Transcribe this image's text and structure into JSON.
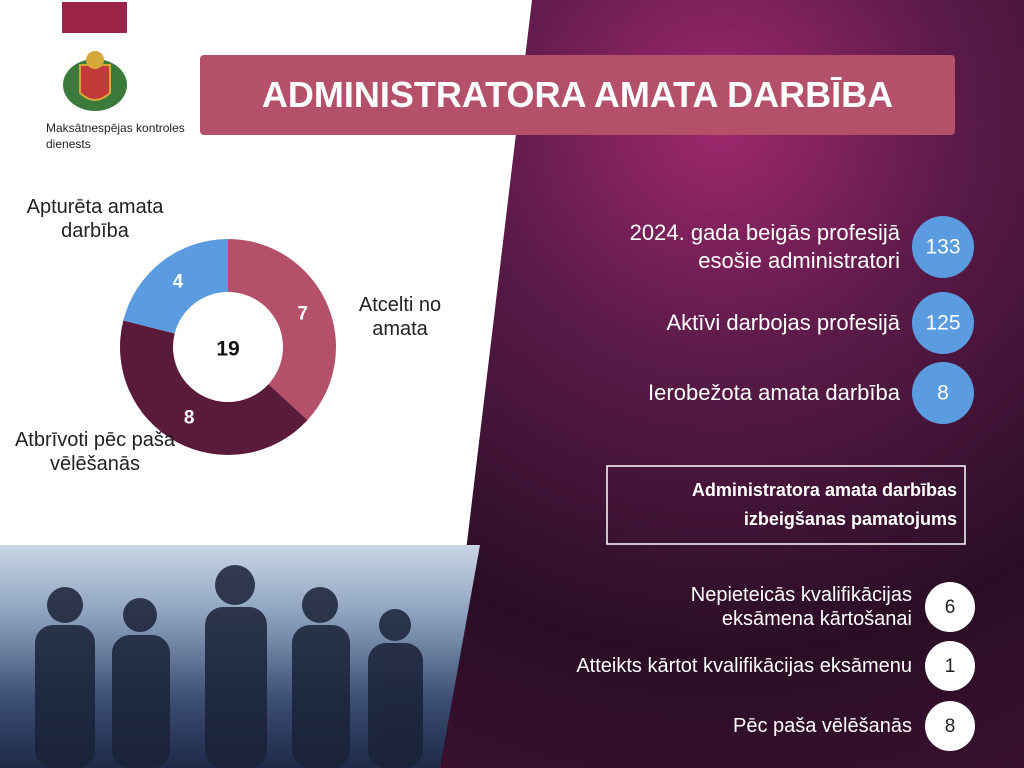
{
  "header": {
    "title": "ADMINISTRATORA AMATA DARBĪBA"
  },
  "logo": {
    "caption": "Maksātnespējas kontroles dienests"
  },
  "chart_data": {
    "type": "pie",
    "hole": true,
    "categories": [
      "Atcelti no amata",
      "Atbrīvoti pēc paša vēlēšanās",
      "Apturēta amata darbība"
    ],
    "values": [
      7,
      8,
      4
    ],
    "colors": [
      "#b5506a",
      "#5a1a3a",
      "#5b9be0"
    ],
    "total": 19
  },
  "stats": [
    {
      "label": "2024. gada beigās profesijā esošie administratori",
      "value": 133
    },
    {
      "label": "Aktīvi darbojas profesijā",
      "value": 125
    },
    {
      "label": "Ierobežota amata darbība",
      "value": 8
    }
  ],
  "reasons": {
    "title": "Administratora amata darbības izbeigšanas pamatojums",
    "items": [
      {
        "label": "Nepieteicās kvalifikācijas eksāmena kārtošanai",
        "value": 6
      },
      {
        "label": "Atteikts kārtot kvalifikācijas eksāmenu",
        "value": 1
      },
      {
        "label": "Pēc paša vēlēšanās",
        "value": 8
      }
    ]
  }
}
